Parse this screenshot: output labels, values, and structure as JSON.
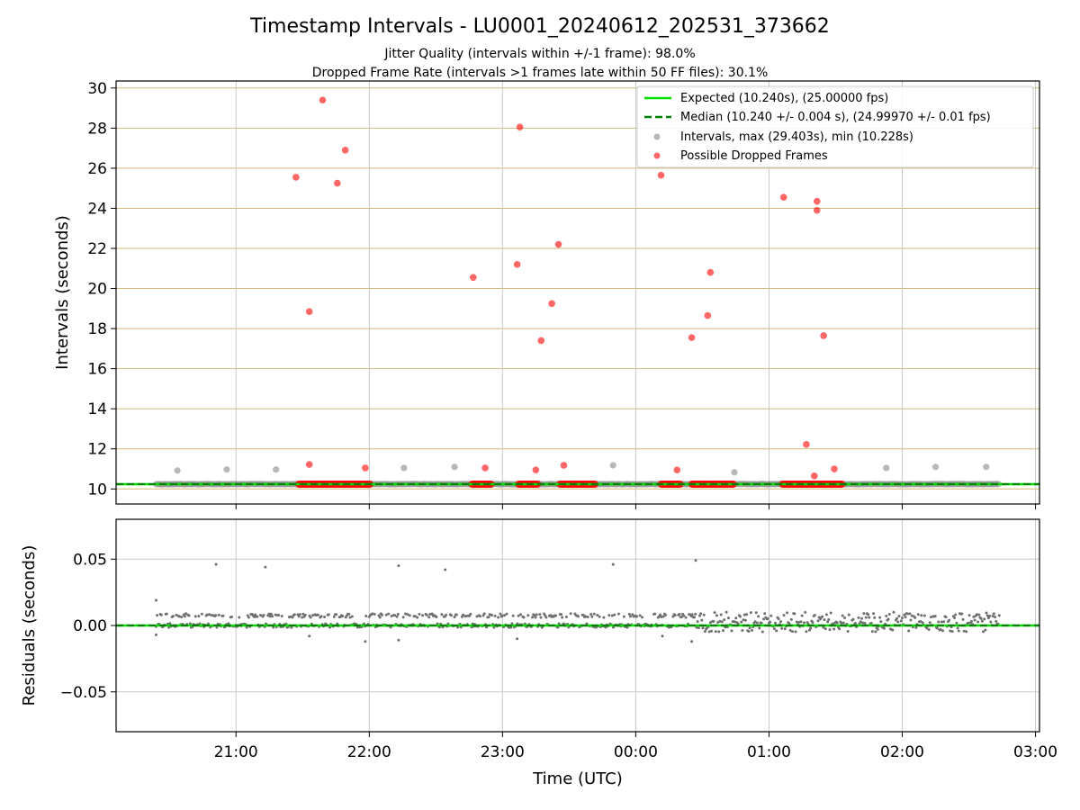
{
  "title": "Timestamp Intervals - LU0001_20240612_202531_373662",
  "subtitle_1": "Jitter Quality (intervals within +/-1 frame): 98.0%",
  "subtitle_2": "Dropped Frame Rate (intervals >1 frames late within 50 FF files): 30.1%",
  "colors": {
    "expected": "#00e000",
    "median": "#008000",
    "intervals": "#888888",
    "dropped": "#ff0000",
    "hgrid_top": "#d2b874",
    "grid": "#c8c8c8",
    "residual_points": "#707070"
  },
  "chart_data": [
    {
      "type": "scatter",
      "title": "Timestamp Intervals - LU0001_20240612_202531_373662",
      "xlabel": "",
      "ylabel": "Intervals (seconds)",
      "x_unit": "hours since 00:00 UTC (negative = previous day)",
      "xlim": [
        -3.9,
        3.03
      ],
      "ylim": [
        9.25,
        30.35
      ],
      "yticks": [
        "10",
        "12",
        "14",
        "16",
        "18",
        "20",
        "22",
        "24",
        "26",
        "28",
        "30"
      ],
      "grid": true,
      "legend_position": "top-right",
      "legend": [
        "Expected (10.240s), (25.00000 fps)",
        "Median (10.240 +/- 0.004 s), (24.99970 +/- 0.01 fps)",
        "Intervals, max (29.403s), min (10.228s)",
        "Possible Dropped Frames"
      ],
      "series": [
        {
          "name": "Expected (10.240s), (25.00000 fps)",
          "kind": "hline",
          "y": 10.24
        },
        {
          "name": "Median (10.240 +/- 0.004 s), (24.99970 +/- 0.01 fps)",
          "kind": "hline-dashed",
          "y": 10.24
        },
        {
          "name": "Intervals, max (29.403s), min (10.228s)",
          "kind": "points",
          "x_range": [
            -3.6,
            2.73
          ],
          "y_base": 10.24,
          "outliers": [
            [
              -3.44,
              10.92
            ],
            [
              -3.07,
              10.97
            ],
            [
              -2.7,
              10.97
            ],
            [
              -1.74,
              11.05
            ],
            [
              -1.36,
              11.1
            ],
            [
              -0.17,
              11.18
            ],
            [
              0.74,
              10.83
            ],
            [
              1.88,
              11.05
            ],
            [
              2.25,
              11.1
            ],
            [
              2.63,
              11.1
            ]
          ]
        },
        {
          "name": "Possible Dropped Frames",
          "kind": "points",
          "clusters": [
            [
              -2.53,
              -1.99
            ],
            [
              -1.23,
              -1.08
            ],
            [
              -0.88,
              -0.73
            ],
            [
              -0.57,
              -0.3
            ],
            [
              0.19,
              0.34
            ],
            [
              0.42,
              0.74
            ],
            [
              1.1,
              1.55
            ]
          ],
          "y_base": 10.24,
          "points": [
            [
              -2.55,
              25.55
            ],
            [
              -2.45,
              18.85
            ],
            [
              -2.35,
              29.4
            ],
            [
              -2.24,
              25.25
            ],
            [
              -2.18,
              26.9
            ],
            [
              -2.45,
              11.22
            ],
            [
              -2.03,
              11.05
            ],
            [
              -1.22,
              20.55
            ],
            [
              -1.13,
              11.05
            ],
            [
              -0.89,
              21.2
            ],
            [
              -0.87,
              28.05
            ],
            [
              -0.75,
              10.95
            ],
            [
              -0.71,
              17.4
            ],
            [
              -0.63,
              19.25
            ],
            [
              -0.58,
              22.2
            ],
            [
              -0.54,
              11.18
            ],
            [
              0.19,
              25.65
            ],
            [
              0.31,
              10.95
            ],
            [
              0.42,
              17.55
            ],
            [
              0.54,
              18.65
            ],
            [
              0.56,
              20.8
            ],
            [
              1.11,
              24.55
            ],
            [
              1.28,
              12.22
            ],
            [
              1.36,
              24.35
            ],
            [
              1.36,
              23.9
            ],
            [
              1.34,
              10.65
            ],
            [
              1.41,
              17.65
            ],
            [
              1.49,
              11.0
            ]
          ]
        }
      ]
    },
    {
      "type": "scatter",
      "xlabel": "Time (UTC)",
      "ylabel": "Residuals (seconds)",
      "x_unit": "hours since 00:00 UTC (negative = previous day)",
      "xlim": [
        -3.9,
        3.03
      ],
      "ylim": [
        -0.08,
        0.08
      ],
      "yticks": [
        "−0.05",
        "0.00",
        "0.05"
      ],
      "xticks": [
        "21:00",
        "22:00",
        "23:00",
        "00:00",
        "01:00",
        "02:00",
        "03:00"
      ],
      "grid": true,
      "series": [
        {
          "kind": "points",
          "x_range": [
            -3.6,
            2.73
          ],
          "y_base": 0.0,
          "outliers": [
            [
              -3.6,
              0.019
            ],
            [
              -3.6,
              -0.007
            ],
            [
              -3.15,
              0.046
            ],
            [
              -2.78,
              0.044
            ],
            [
              -1.78,
              0.045
            ],
            [
              -1.43,
              0.042
            ],
            [
              -0.17,
              0.046
            ],
            [
              0.45,
              0.049
            ],
            [
              -1.78,
              -0.011
            ],
            [
              -2.03,
              -0.012
            ],
            [
              -0.89,
              -0.01
            ],
            [
              0.2,
              -0.008
            ],
            [
              0.42,
              -0.012
            ],
            [
              -2.45,
              -0.008
            ]
          ]
        }
      ]
    }
  ]
}
